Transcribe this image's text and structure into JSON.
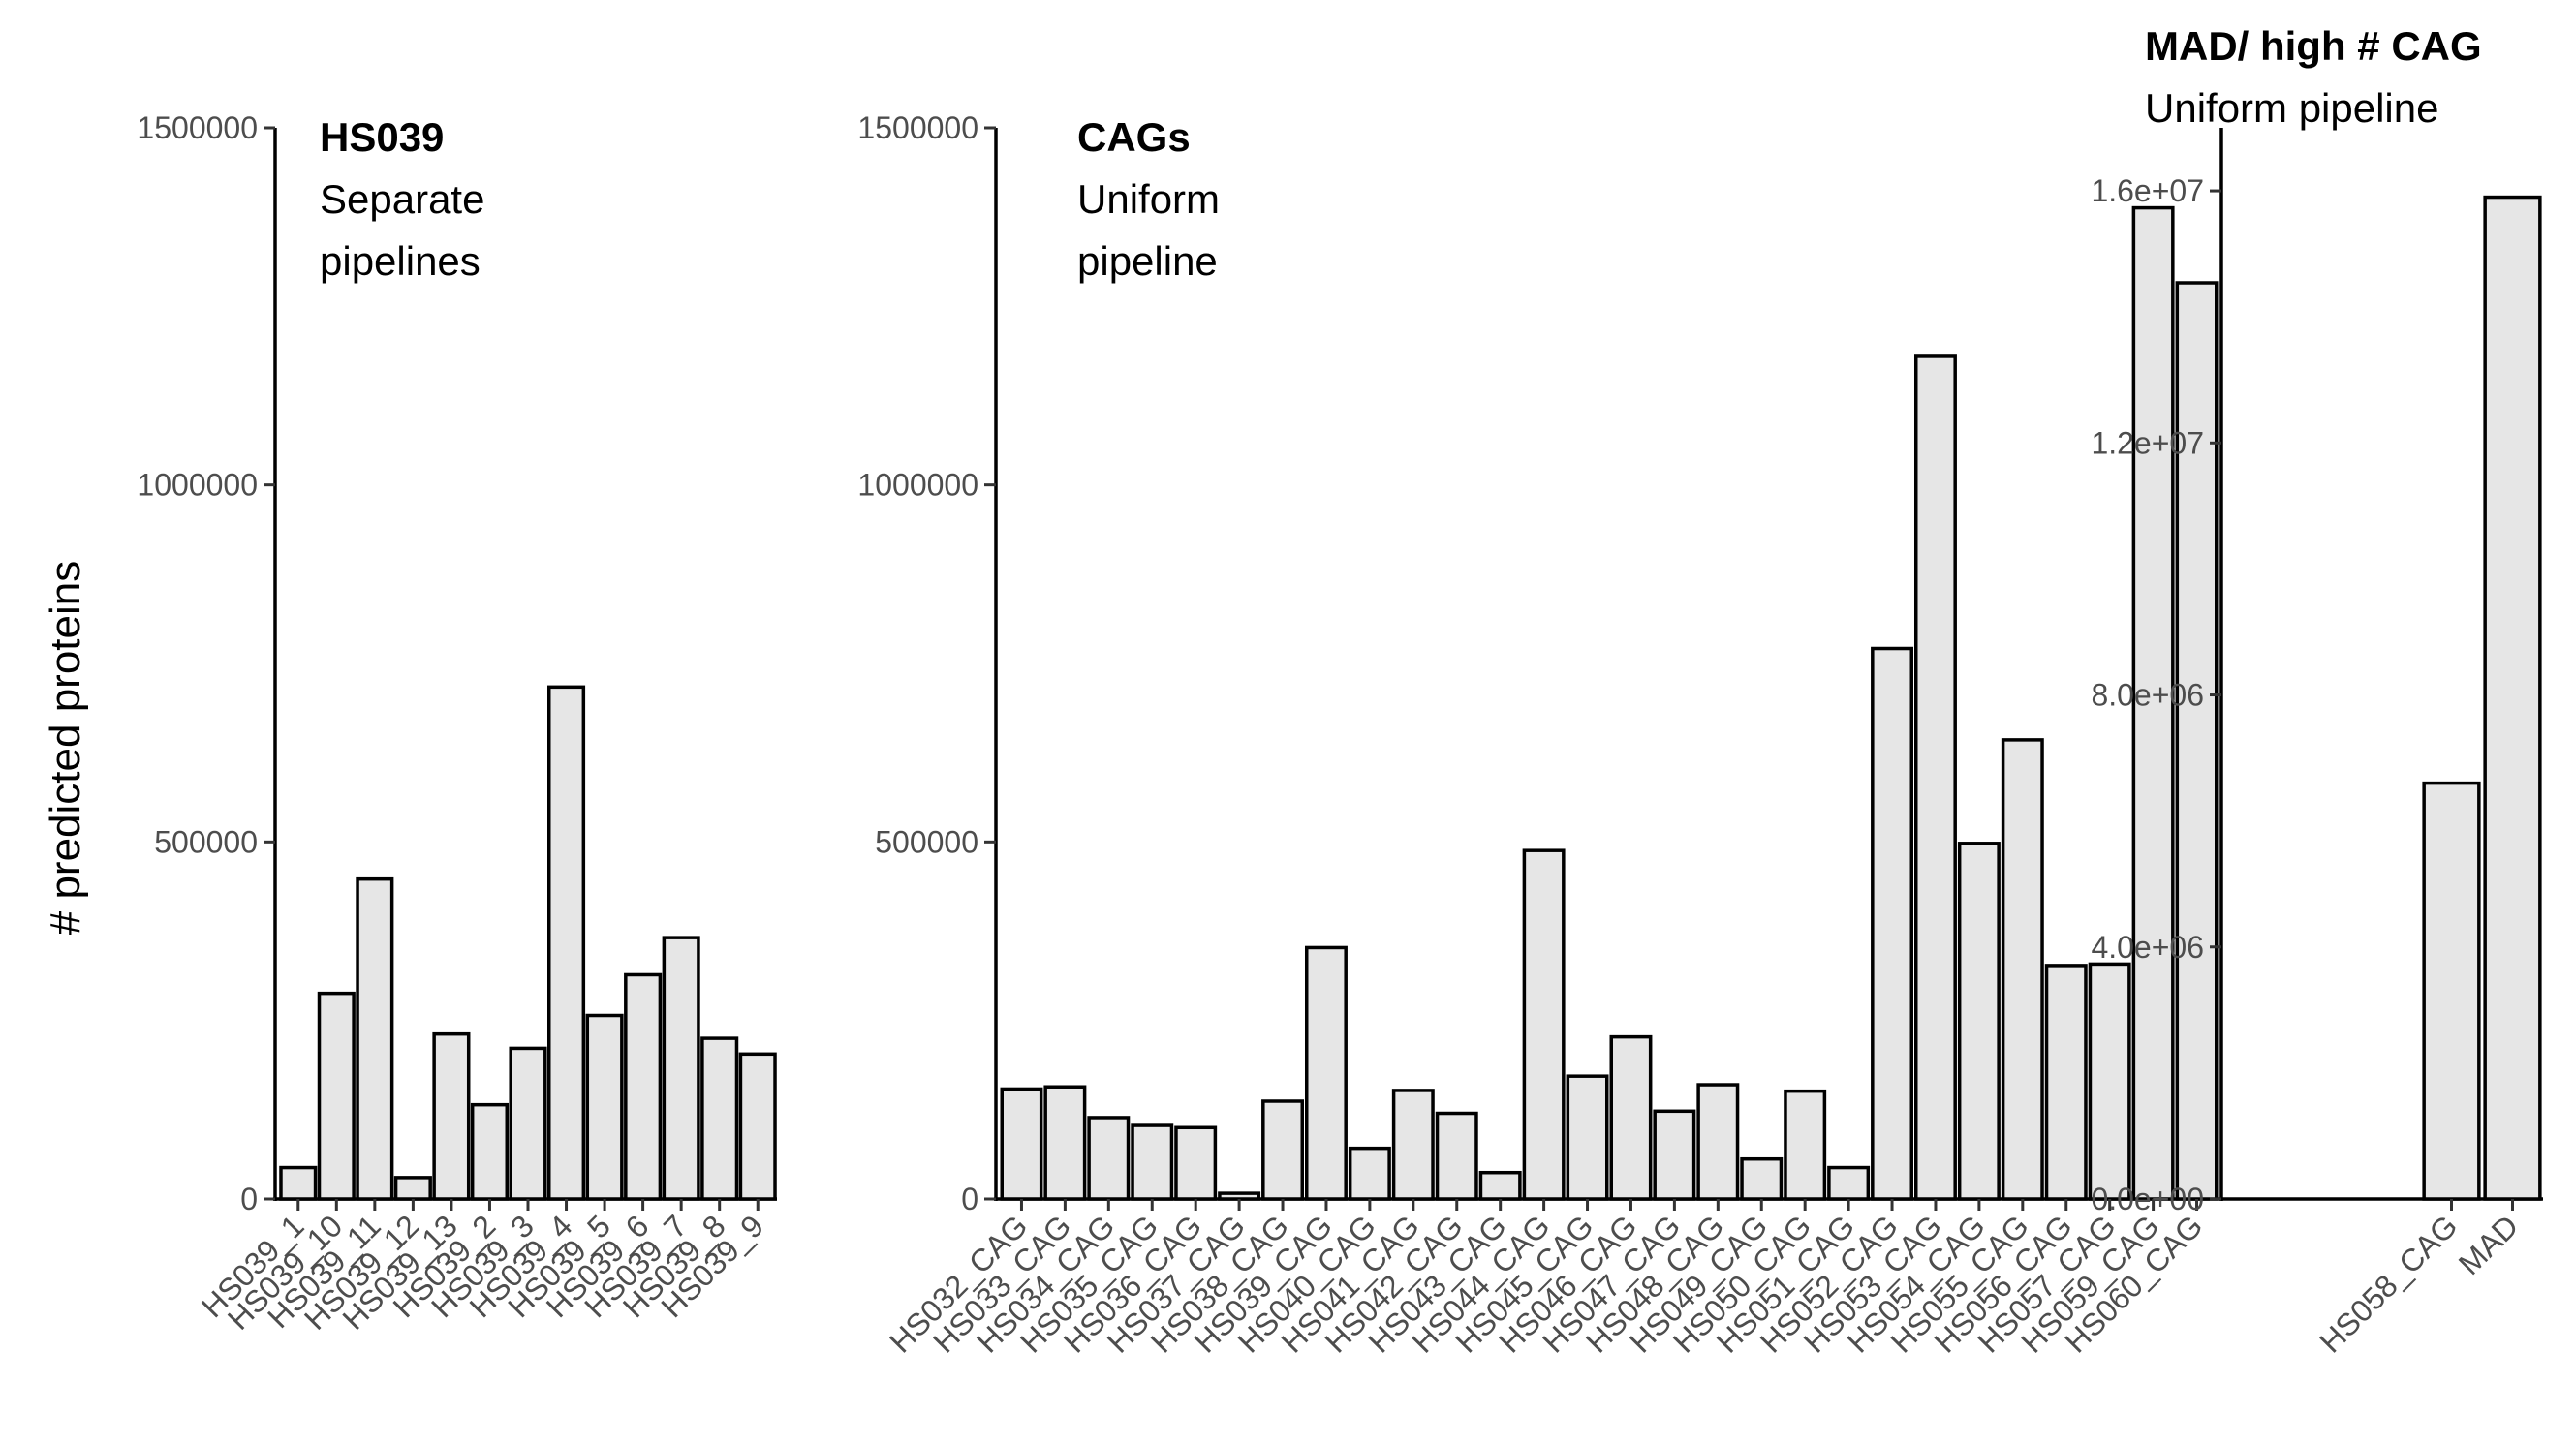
{
  "ylabel": "# predicted proteins",
  "colors": {
    "bar_fill": "#e6e6e6",
    "bar_stroke": "#000000",
    "tick_text": "#4d4d4d"
  },
  "chart_data": [
    {
      "type": "bar",
      "title": "HS039",
      "subtitle": [
        "Separate",
        "pipelines"
      ],
      "ylabel": "# predicted proteins",
      "ylim": [
        0,
        1500000
      ],
      "yticks": [
        0,
        500000,
        1000000,
        1500000
      ],
      "ytick_labels": [
        "0",
        "500000",
        "1000000",
        "1500000"
      ],
      "grid": false,
      "categories": [
        "HS039_1",
        "HS039_10",
        "HS039_11",
        "HS039_12",
        "HS039_13",
        "HS039_2",
        "HS039_3",
        "HS039_4",
        "HS039_5",
        "HS039_6",
        "HS039_7",
        "HS039_8",
        "HS039_9"
      ],
      "values": [
        44000,
        288000,
        448000,
        30000,
        231000,
        132000,
        211000,
        717000,
        257000,
        314000,
        366000,
        225000,
        203000
      ]
    },
    {
      "type": "bar",
      "title": "CAGs",
      "subtitle": [
        "Uniform",
        "pipeline"
      ],
      "ylim": [
        0,
        1500000
      ],
      "yticks": [
        0,
        500000,
        1000000,
        1500000
      ],
      "ytick_labels": [
        "0",
        "500000",
        "1000000",
        "1500000"
      ],
      "grid": false,
      "categories": [
        "HS032_CAG",
        "HS033_CAG",
        "HS034_CAG",
        "HS035_CAG",
        "HS036_CAG",
        "HS037_CAG",
        "HS038_CAG",
        "HS039_CAG",
        "HS040_CAG",
        "HS041_CAG",
        "HS042_CAG",
        "HS043_CAG",
        "HS044_CAG",
        "HS045_CAG",
        "HS046_CAG",
        "HS047_CAG",
        "HS048_CAG",
        "HS049_CAG",
        "HS050_CAG",
        "HS051_CAG",
        "HS052_CAG",
        "HS053_CAG",
        "HS054_CAG",
        "HS055_CAG",
        "HS056_CAG",
        "HS057_CAG",
        "HS059_CAG",
        "HS060_CAG"
      ],
      "values": [
        154000,
        157000,
        114000,
        103000,
        100000,
        8000,
        137000,
        352000,
        71000,
        152000,
        120000,
        37000,
        488000,
        172000,
        227000,
        123000,
        160000,
        56000,
        151000,
        44000,
        771000,
        1180000,
        498000,
        643000,
        327000,
        329000,
        1388000,
        1283000
      ]
    },
    {
      "type": "bar",
      "title": "MAD/ high # CAG",
      "subtitle": [
        "Uniform pipeline"
      ],
      "ylim": [
        0,
        17000000
      ],
      "yticks": [
        0,
        4000000,
        8000000,
        12000000,
        16000000
      ],
      "ytick_labels": [
        "0.0e+00",
        "4.0e+06",
        "8.0e+06",
        "1.2e+07",
        "1.6e+07"
      ],
      "grid": false,
      "categories": [
        "HS058_CAG",
        "MAD"
      ],
      "values": [
        6600000,
        15900000
      ]
    }
  ]
}
